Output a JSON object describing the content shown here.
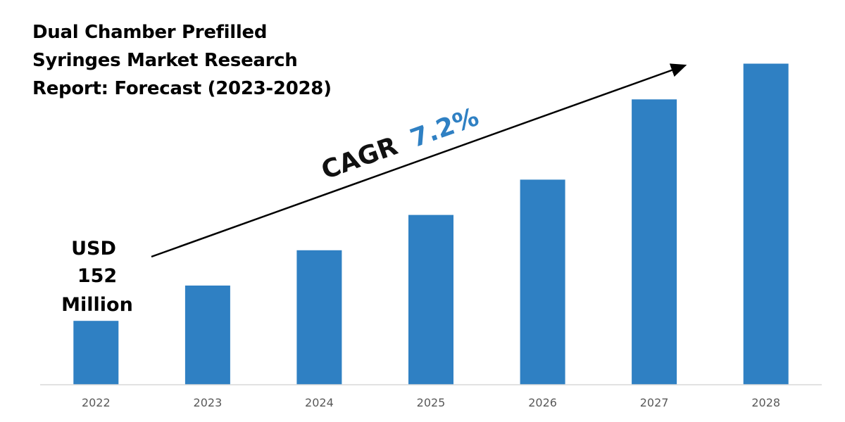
{
  "title_lines": [
    "Dual Chamber Prefilled",
    "Syringes Market Research",
    "Report: Forecast (2023-2028)"
  ],
  "colors": {
    "bar": "#2F80C3",
    "axis": "#D9D9D9",
    "cagr_dark": "#111111",
    "cagr_accent": "#2F80C3"
  },
  "chart_data": {
    "type": "bar",
    "title": "Dual Chamber Prefilled Syringes Market Research Report: Forecast (2023-2028)",
    "categories": [
      "2022",
      "2023",
      "2024",
      "2025",
      "2026",
      "2027",
      "2028"
    ],
    "values": [
      152,
      236,
      320,
      404,
      488,
      679,
      764
    ],
    "ylim": [
      0,
      800
    ],
    "xlabel": "",
    "ylabel": "",
    "value_label_lines": [
      "USD",
      "152",
      "Million"
    ],
    "cagr_label": "CAGR",
    "cagr_value": "7.2%",
    "grid": false
  }
}
